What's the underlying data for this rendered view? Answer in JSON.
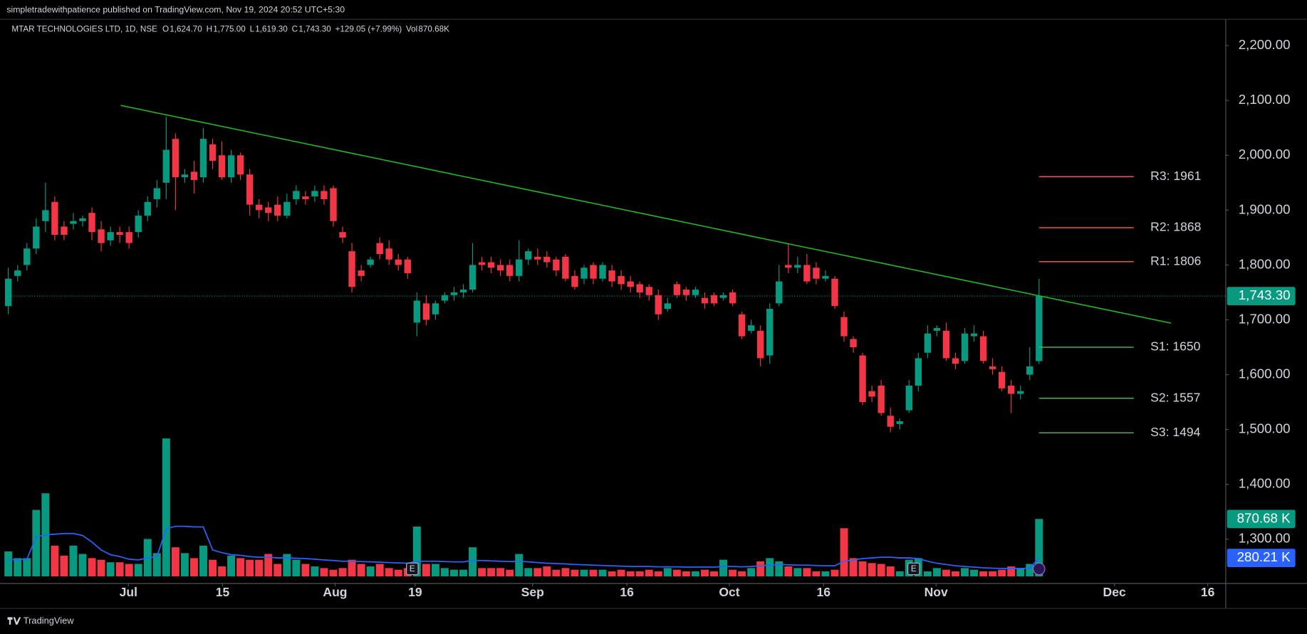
{
  "chart_data": {
    "type": "candlestick",
    "header": "simpletradewithpatience published on TradingView.com, Nov 19, 2024 20:52 UTC+5:30",
    "symbol": "MTAR TECHNOLOGIES LTD, 1D, NSE",
    "legend": [
      {
        "key": "O",
        "value": "1,624.70"
      },
      {
        "key": "H",
        "value": "1,775.00"
      },
      {
        "key": "L",
        "value": "1,619.30"
      },
      {
        "key": "C",
        "value": "1,743.30"
      }
    ],
    "change": "+129.05 (+7.99%)",
    "volume_key": "Vol",
    "volume_value": "870.68K",
    "footer": "TradingView",
    "colors": {
      "up": "#089981",
      "down": "#f23645",
      "trend": "#1fbf1f",
      "resistance": "#f0524f",
      "support": "#4caf50",
      "ma": "#2962ff"
    },
    "xlim": [
      -0.18,
      131.06
    ],
    "xticks": [
      {
        "value": 12.93,
        "label": "Jul"
      },
      {
        "value": 23.07,
        "label": "15"
      },
      {
        "value": 35.19,
        "label": "Aug"
      },
      {
        "value": 43.81,
        "label": "19"
      },
      {
        "value": 56.46,
        "label": "Sep"
      },
      {
        "value": 66.61,
        "label": "16"
      },
      {
        "value": 77.65,
        "label": "Oct"
      },
      {
        "value": 87.79,
        "label": "16"
      },
      {
        "value": 99.91,
        "label": "Nov"
      },
      {
        "value": 119.12,
        "label": "Dec"
      },
      {
        "value": 129.17,
        "label": "16"
      }
    ],
    "ylim": [
      1220,
      2248
    ],
    "yticks": [
      {
        "value": 1300,
        "label": "1,300.00"
      },
      {
        "value": 1400,
        "label": "1,400.00"
      },
      {
        "value": 1500,
        "label": "1,500.00"
      },
      {
        "value": 1600,
        "label": "1,600.00"
      },
      {
        "value": 1700,
        "label": "1,700.00"
      },
      {
        "value": 1800,
        "label": "1,800.00"
      },
      {
        "value": 1900,
        "label": "1,900.00"
      },
      {
        "value": 2000,
        "label": "2,000.00"
      },
      {
        "value": 2100,
        "label": "2,100.00"
      },
      {
        "value": 2200,
        "label": "2,200.00"
      }
    ],
    "open": [
      1725,
      1780,
      1800,
      1830,
      1880,
      1915,
      1870,
      1875,
      1880,
      1895,
      1865,
      1845,
      1860,
      1860,
      1860,
      1890,
      1920,
      1950,
      2030,
      1960,
      1970,
      1960,
      2020,
      2000,
      1960,
      2000,
      1965,
      1910,
      1905,
      1910,
      1890,
      1920,
      1925,
      1925,
      1935,
      1940,
      1860,
      1825,
      1790,
      1800,
      1840,
      1830,
      1810,
      1810,
      1695,
      1730,
      1710,
      1735,
      1745,
      1750,
      1755,
      1805,
      1805,
      1800,
      1800,
      1780,
      1810,
      1815,
      1815,
      1810,
      1815,
      1780,
      1775,
      1800,
      1775,
      1790,
      1780,
      1770,
      1765,
      1760,
      1745,
      1720,
      1765,
      1755,
      1745,
      1740,
      1745,
      1740,
      1750,
      1710,
      1680,
      1680,
      1635,
      1730,
      1800,
      1795,
      1800,
      1795,
      1775,
      1775,
      1705,
      1665,
      1635,
      1570,
      1580,
      1525,
      1510,
      1535,
      1580,
      1640,
      1680,
      1680,
      1630,
      1625,
      1670,
      1670,
      1615,
      1605,
      1580,
      1565,
      1600,
      1624.7
    ],
    "high": [
      1795,
      1800,
      1840,
      1885,
      1950,
      1925,
      1880,
      1895,
      1890,
      1905,
      1880,
      1870,
      1870,
      1870,
      1900,
      1925,
      1955,
      2070,
      2040,
      1975,
      1990,
      2050,
      2030,
      2025,
      2010,
      2005,
      1975,
      1920,
      1915,
      1925,
      1930,
      1945,
      1935,
      1945,
      1945,
      1945,
      1870,
      1840,
      1800,
      1815,
      1850,
      1845,
      1820,
      1815,
      1750,
      1745,
      1735,
      1750,
      1760,
      1765,
      1840,
      1815,
      1815,
      1810,
      1810,
      1845,
      1830,
      1830,
      1825,
      1815,
      1820,
      1790,
      1800,
      1805,
      1805,
      1800,
      1790,
      1780,
      1770,
      1765,
      1755,
      1740,
      1770,
      1760,
      1760,
      1750,
      1750,
      1750,
      1755,
      1715,
      1700,
      1690,
      1730,
      1800,
      1840,
      1815,
      1820,
      1805,
      1790,
      1780,
      1715,
      1670,
      1640,
      1580,
      1590,
      1540,
      1520,
      1590,
      1640,
      1690,
      1690,
      1695,
      1640,
      1685,
      1690,
      1680,
      1630,
      1615,
      1590,
      1580,
      1650,
      1775
    ],
    "low": [
      1710,
      1770,
      1790,
      1820,
      1860,
      1845,
      1845,
      1865,
      1870,
      1845,
      1825,
      1835,
      1840,
      1830,
      1850,
      1880,
      1905,
      1920,
      1900,
      1950,
      1930,
      1950,
      1975,
      1955,
      1950,
      1955,
      1890,
      1885,
      1880,
      1880,
      1885,
      1910,
      1910,
      1915,
      1910,
      1870,
      1840,
      1750,
      1770,
      1795,
      1810,
      1800,
      1790,
      1775,
      1670,
      1690,
      1700,
      1730,
      1735,
      1740,
      1750,
      1790,
      1785,
      1780,
      1770,
      1770,
      1800,
      1800,
      1795,
      1780,
      1770,
      1755,
      1765,
      1765,
      1770,
      1760,
      1755,
      1750,
      1740,
      1735,
      1700,
      1715,
      1740,
      1735,
      1740,
      1720,
      1725,
      1735,
      1725,
      1665,
      1675,
      1615,
      1620,
      1725,
      1785,
      1785,
      1765,
      1765,
      1770,
      1720,
      1660,
      1640,
      1545,
      1550,
      1525,
      1495,
      1500,
      1530,
      1570,
      1630,
      1670,
      1625,
      1610,
      1620,
      1660,
      1620,
      1600,
      1570,
      1530,
      1555,
      1590,
      1619.3
    ],
    "close": [
      1775,
      1790,
      1830,
      1870,
      1900,
      1855,
      1855,
      1880,
      1885,
      1860,
      1840,
      1860,
      1855,
      1840,
      1890,
      1915,
      1940,
      2010,
      1960,
      1965,
      1955,
      2030,
      1990,
      1960,
      2000,
      1965,
      1910,
      1900,
      1895,
      1890,
      1915,
      1935,
      1920,
      1935,
      1920,
      1880,
      1850,
      1760,
      1780,
      1810,
      1820,
      1810,
      1800,
      1785,
      1735,
      1700,
      1730,
      1745,
      1750,
      1755,
      1800,
      1800,
      1795,
      1790,
      1780,
      1810,
      1825,
      1810,
      1805,
      1790,
      1775,
      1760,
      1795,
      1775,
      1800,
      1770,
      1765,
      1760,
      1750,
      1745,
      1710,
      1730,
      1745,
      1745,
      1755,
      1730,
      1730,
      1745,
      1730,
      1670,
      1690,
      1630,
      1720,
      1770,
      1795,
      1800,
      1770,
      1775,
      1780,
      1725,
      1670,
      1650,
      1550,
      1560,
      1530,
      1505,
      1515,
      1580,
      1630,
      1675,
      1685,
      1630,
      1620,
      1675,
      1675,
      1625,
      1610,
      1575,
      1565,
      1570,
      1615,
      1743.3
    ],
    "volume_lim": [
      0,
      2500
    ],
    "volume": [
      378,
      277,
      277,
      1008,
      1260,
      466,
      315,
      466,
      340,
      277,
      252,
      214,
      214,
      189,
      189,
      567,
      353,
      2092,
      441,
      353,
      277,
      466,
      252,
      151,
      315,
      277,
      252,
      252,
      340,
      189,
      340,
      252,
      189,
      151,
      126,
      101,
      126,
      252,
      189,
      151,
      189,
      126,
      101,
      126,
      756,
      189,
      189,
      126,
      101,
      101,
      441,
      126,
      126,
      126,
      101,
      340,
      126,
      126,
      151,
      101,
      126,
      101,
      101,
      101,
      101,
      76,
      101,
      76,
      76,
      101,
      76,
      126,
      101,
      76,
      76,
      101,
      76,
      252,
      101,
      76,
      126,
      227,
      277,
      227,
      151,
      126,
      126,
      76,
      76,
      101,
      731,
      277,
      227,
      202,
      189,
      151,
      76,
      252,
      277,
      76,
      126,
      101,
      76,
      126,
      101,
      76,
      76,
      101,
      151,
      126,
      189,
      870.68
    ],
    "volume_ma": [
      250,
      255,
      260,
      600,
      630,
      640,
      650,
      650,
      620,
      520,
      400,
      330,
      300,
      260,
      250,
      280,
      300,
      720,
      760,
      760,
      750,
      750,
      400,
      360,
      330,
      320,
      300,
      290,
      290,
      280,
      280,
      275,
      270,
      260,
      250,
      240,
      230,
      230,
      225,
      220,
      215,
      210,
      205,
      200,
      230,
      230,
      230,
      225,
      220,
      220,
      240,
      240,
      235,
      230,
      225,
      230,
      220,
      210,
      200,
      195,
      190,
      180,
      175,
      170,
      165,
      160,
      155,
      150,
      150,
      150,
      145,
      145,
      145,
      140,
      140,
      140,
      140,
      150,
      150,
      145,
      150,
      160,
      170,
      180,
      175,
      170,
      170,
      165,
      160,
      160,
      230,
      250,
      270,
      280,
      290,
      290,
      280,
      280,
      270,
      230,
      200,
      180,
      160,
      150,
      140,
      130,
      125,
      120,
      120,
      120,
      125,
      280.21
    ],
    "volume_value_label": "870.68 K",
    "volume_ma_label": "280.21 K",
    "last_price": {
      "value": 1743.3,
      "label": "1,743.30"
    },
    "trendline": {
      "start": {
        "x": 12.1,
        "price": 2091
      },
      "end": {
        "x": 125.2,
        "price": 1694
      }
    },
    "pivots": [
      {
        "label": "R3: 1961",
        "value": 1961,
        "kind": "resistance"
      },
      {
        "label": "R2: 1868",
        "value": 1868,
        "kind": "resistance"
      },
      {
        "label": "R1: 1806",
        "value": 1806,
        "kind": "resistance"
      },
      {
        "label": "S1: 1650",
        "value": 1650,
        "kind": "support"
      },
      {
        "label": "S2: 1557",
        "value": 1557,
        "kind": "support"
      },
      {
        "label": "S3: 1494",
        "value": 1494,
        "kind": "support"
      }
    ],
    "event_badges": [
      "E",
      "E"
    ]
  }
}
